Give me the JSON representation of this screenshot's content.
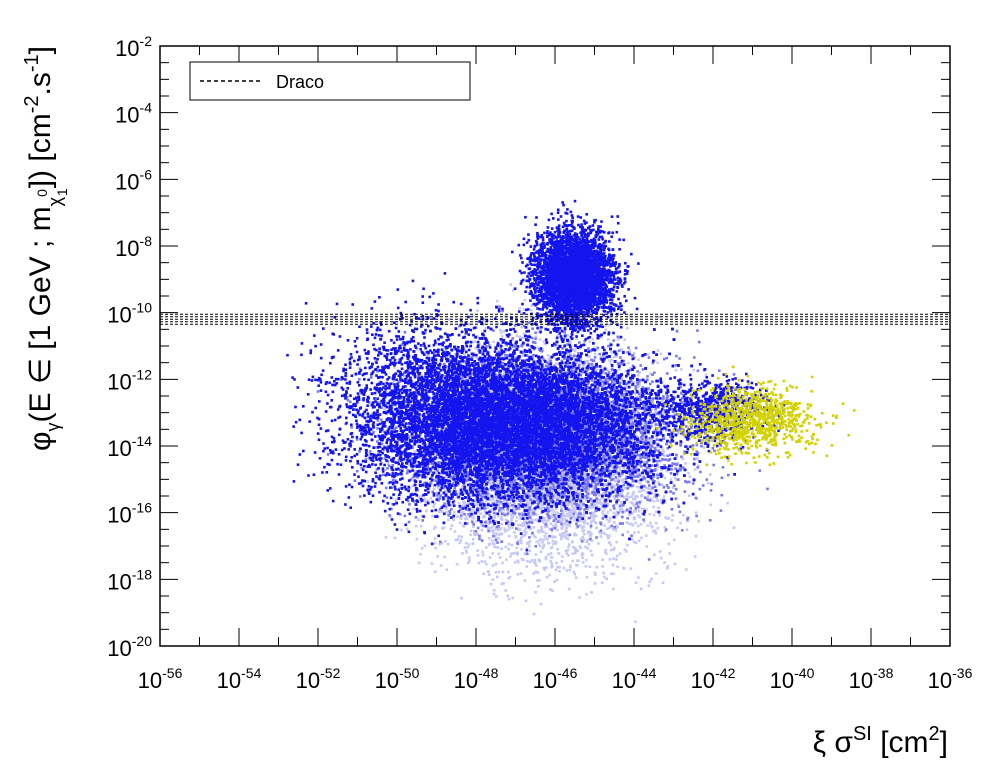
{
  "chart_data": {
    "type": "scatter",
    "x_scale": "log10",
    "y_scale": "log10",
    "x_tick_exponents": [
      -56,
      -54,
      -52,
      -50,
      -48,
      -46,
      -44,
      -42,
      -40,
      -38,
      -36
    ],
    "y_tick_exponents": [
      -20,
      -18,
      -16,
      -14,
      -12,
      -10,
      -8,
      -6,
      -4,
      -2
    ],
    "tick_base": "10",
    "xlim_log10": [
      -56,
      -36
    ],
    "ylim_log10": [
      -20,
      -2
    ],
    "xlabel": {
      "pre": "ξ σ",
      "sup": "SI",
      "mid": " [cm",
      "sup2": "2",
      "post": "]"
    },
    "ylabel": {
      "phi": "φ",
      "phi_sub": "γ",
      "body": "(E ∈ [1 GeV ; m",
      "chi_sub": "χ",
      "chi_sup": "0",
      "chi_sub2": "1",
      "tail": "]) [cm",
      "exp1": "-2",
      "mid": ".s",
      "exp2": "-1",
      "end": "]"
    },
    "legend": {
      "placement": "top-left",
      "entries": [
        {
          "label": "Draco",
          "style": "dashed"
        }
      ]
    },
    "reference_band": {
      "label": "Draco",
      "y_log10": [
        -10.35,
        -10.05
      ]
    },
    "series": [
      {
        "color": "#c8c8f4",
        "description": "light lavender",
        "clusters": [
          {
            "cx": -46.2,
            "cy": -14.2,
            "sx": 1.5,
            "sy": 1.6,
            "n": 5500
          }
        ]
      },
      {
        "color": "#7a7af0",
        "description": "medium blue",
        "clusters": [
          {
            "cx": -46.3,
            "cy": -13.6,
            "sx": 1.8,
            "sy": 1.2,
            "n": 4500
          }
        ]
      },
      {
        "color": "#1414ee",
        "description": "blue",
        "clusters": [
          {
            "cx": -46.5,
            "cy": -13.3,
            "sx": 1.6,
            "sy": 1.1,
            "n": 16000
          },
          {
            "cx": -45.5,
            "cy": -8.9,
            "sx": 0.5,
            "sy": 0.7,
            "n": 4000
          },
          {
            "cx": -48.8,
            "cy": -13.0,
            "sx": 1.4,
            "sy": 1.3,
            "n": 3500
          },
          {
            "cx": -42.0,
            "cy": -12.9,
            "sx": 0.7,
            "sy": 0.5,
            "n": 700
          }
        ]
      },
      {
        "color": "#d2d200",
        "description": "yellow",
        "clusters": [
          {
            "cx": -41.0,
            "cy": -13.2,
            "sx": 0.8,
            "sy": 0.5,
            "n": 900
          }
        ]
      }
    ]
  }
}
